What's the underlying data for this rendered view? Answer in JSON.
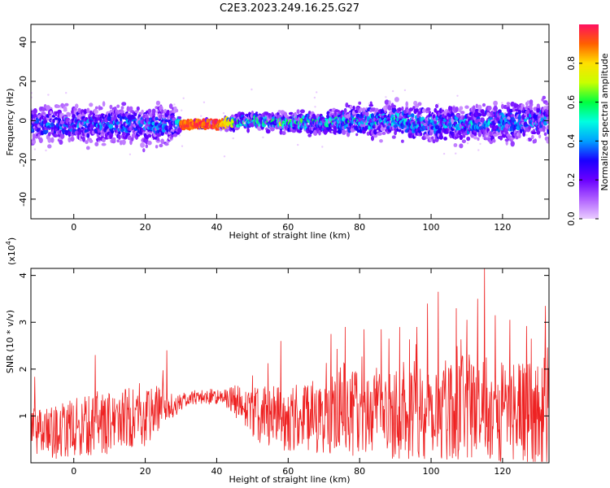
{
  "title": "C2E3.2023.249.16.25.G27",
  "colors": {
    "snr_line": "#ee2222",
    "heat_stops": [
      "#eaccff",
      "#b060ff",
      "#6a00ff",
      "#1a00ff",
      "#00a0ff",
      "#00ffe0",
      "#00ff40",
      "#c8ff00",
      "#ffe000",
      "#ff6000",
      "#ff1060"
    ]
  },
  "chart_data": [
    {
      "type": "heatmap",
      "xlabel": "Height of straight line (km)",
      "ylabel": "Frequency (Hz)",
      "xlim": [
        -12,
        133
      ],
      "ylim": [
        -50,
        49
      ],
      "xticks": [
        0,
        20,
        40,
        60,
        80,
        100,
        120
      ],
      "yticks": [
        -40,
        -20,
        0,
        20,
        40
      ],
      "description_of_field": {
        "center_line_hz": [
          [
            -12,
            -2
          ],
          [
            28,
            -2
          ],
          [
            40,
            -2
          ],
          [
            50,
            0
          ],
          [
            60,
            -1
          ],
          [
            70,
            -1
          ],
          [
            80,
            0
          ],
          [
            90,
            0
          ],
          [
            100,
            -2
          ],
          [
            110,
            -2
          ],
          [
            120,
            -1
          ],
          [
            133,
            0
          ]
        ],
        "band_halfwidth_hz": [
          [
            -12,
            6
          ],
          [
            28,
            6
          ],
          [
            30,
            1
          ],
          [
            40,
            1
          ],
          [
            45,
            2
          ],
          [
            70,
            3
          ],
          [
            80,
            5
          ],
          [
            133,
            6
          ]
        ],
        "peak_amplitude": [
          [
            -12,
            0.35
          ],
          [
            28,
            0.4
          ],
          [
            30,
            0.85
          ],
          [
            40,
            0.85
          ],
          [
            45,
            0.6
          ],
          [
            60,
            0.7
          ],
          [
            75,
            0.55
          ],
          [
            133,
            0.4
          ]
        ]
      },
      "colorbar": {
        "label": "Normalized spectral amplitude",
        "range": [
          0,
          1
        ],
        "ticks": [
          "0.0",
          "0.2",
          "0.4",
          "0.6",
          "0.8"
        ]
      }
    },
    {
      "type": "line",
      "xlabel": "Height of straight line (km)",
      "ylabel": "SNR (10 * v/v)",
      "ylabel_exponent": "(x10",
      "ylabel_exponent_power": "4",
      "xlim": [
        -12,
        133
      ],
      "ylim": [
        0,
        4.15
      ],
      "xticks": [
        0,
        20,
        40,
        60,
        80,
        100,
        120
      ],
      "yticks": [
        1,
        2,
        3,
        4
      ],
      "series": [
        {
          "envelope_mean": [
            [
              -12,
              0.75
            ],
            [
              -8,
              0.6
            ],
            [
              0,
              0.75
            ],
            [
              10,
              0.85
            ],
            [
              20,
              1.05
            ],
            [
              28,
              1.2
            ],
            [
              32,
              1.38
            ],
            [
              40,
              1.42
            ],
            [
              44,
              1.35
            ],
            [
              50,
              1.05
            ],
            [
              60,
              0.95
            ],
            [
              70,
              1.0
            ],
            [
              80,
              1.05
            ],
            [
              90,
              1.1
            ],
            [
              100,
              1.15
            ],
            [
              110,
              1.2
            ],
            [
              120,
              1.1
            ],
            [
              133,
              1.0
            ]
          ],
          "spread": [
            [
              -12,
              0.35
            ],
            [
              0,
              0.45
            ],
            [
              20,
              0.5
            ],
            [
              30,
              0.12
            ],
            [
              42,
              0.12
            ],
            [
              48,
              0.4
            ],
            [
              70,
              0.6
            ],
            [
              100,
              0.8
            ],
            [
              133,
              0.8
            ]
          ],
          "peaks": [
            [
              -11,
              1.1
            ],
            [
              6,
              2.3
            ],
            [
              26,
              2.4
            ],
            [
              58,
              2.6
            ],
            [
              72,
              2.75
            ],
            [
              76,
              2.9
            ],
            [
              86,
              2.85
            ],
            [
              96,
              2.9
            ],
            [
              99,
              3.4
            ],
            [
              102,
              3.65
            ],
            [
              107,
              3.3
            ],
            [
              110,
              3.05
            ],
            [
              113,
              3.5
            ],
            [
              115,
              4.15
            ],
            [
              118,
              3.15
            ],
            [
              122,
              3.05
            ],
            [
              128,
              2.65
            ],
            [
              132,
              3.35
            ]
          ]
        }
      ]
    }
  ]
}
